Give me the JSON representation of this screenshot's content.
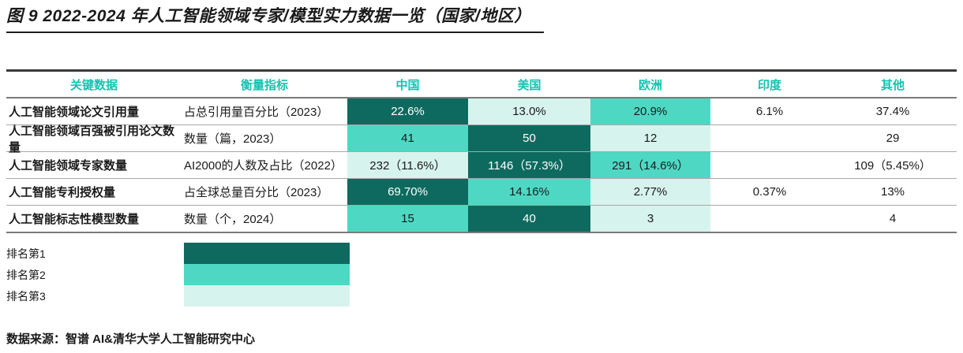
{
  "chart_data": {
    "type": "table",
    "title": "图 9 2022-2024 年人工智能领域专家/模型实力数据一览（国家/地区）",
    "columns": [
      "关键数据",
      "衡量指标",
      "中国",
      "美国",
      "欧洲",
      "印度",
      "其他"
    ],
    "rows": [
      {
        "metric": "人工智能领域论文引用量",
        "indicator": "占总引用量百分比（2023）",
        "cells": [
          {
            "text": "22.6%",
            "rank": 1
          },
          {
            "text": "13.0%",
            "rank": 3
          },
          {
            "text": "20.9%",
            "rank": 2
          },
          {
            "text": "6.1%",
            "rank": 0
          },
          {
            "text": "37.4%",
            "rank": 0
          }
        ]
      },
      {
        "metric": "人工智能领域百强被引用论文数量",
        "indicator": "数量（篇，2023）",
        "cells": [
          {
            "text": "41",
            "rank": 2
          },
          {
            "text": "50",
            "rank": 1
          },
          {
            "text": "12",
            "rank": 3
          },
          {
            "text": "",
            "rank": 0
          },
          {
            "text": "29",
            "rank": 0
          }
        ]
      },
      {
        "metric": "人工智能领域专家数量",
        "indicator": "AI2000的人数及占比（2022）",
        "cells": [
          {
            "text": "232（11.6%）",
            "rank": 3
          },
          {
            "text": "1146（57.3%）",
            "rank": 1
          },
          {
            "text": "291（14.6%）",
            "rank": 2
          },
          {
            "text": "",
            "rank": 0
          },
          {
            "text": "109（5.45%）",
            "rank": 0
          }
        ]
      },
      {
        "metric": "人工智能专利授权量",
        "indicator": "占全球总量百分比（2023）",
        "cells": [
          {
            "text": "69.70%",
            "rank": 1
          },
          {
            "text": "14.16%",
            "rank": 2
          },
          {
            "text": "2.77%",
            "rank": 3
          },
          {
            "text": "0.37%",
            "rank": 0
          },
          {
            "text": "13%",
            "rank": 0
          }
        ]
      },
      {
        "metric": "人工智能标志性模型数量",
        "indicator": "数量（个，2024）",
        "cells": [
          {
            "text": "15",
            "rank": 2
          },
          {
            "text": "40",
            "rank": 1
          },
          {
            "text": "3",
            "rank": 3
          },
          {
            "text": "",
            "rank": 0
          },
          {
            "text": "4",
            "rank": 0
          }
        ]
      }
    ],
    "legend": [
      {
        "label": "排名第1",
        "rank": 1
      },
      {
        "label": "排名第2",
        "rank": 2
      },
      {
        "label": "排名第3",
        "rank": 3
      }
    ],
    "source": "数据来源：智谱 AI&清华大学人工智能研究中心"
  },
  "colors": {
    "rank1": "#0e6a5f",
    "rank2": "#4ed8c4",
    "rank3": "#d7f3ed",
    "header_text": "#12c3b1"
  }
}
